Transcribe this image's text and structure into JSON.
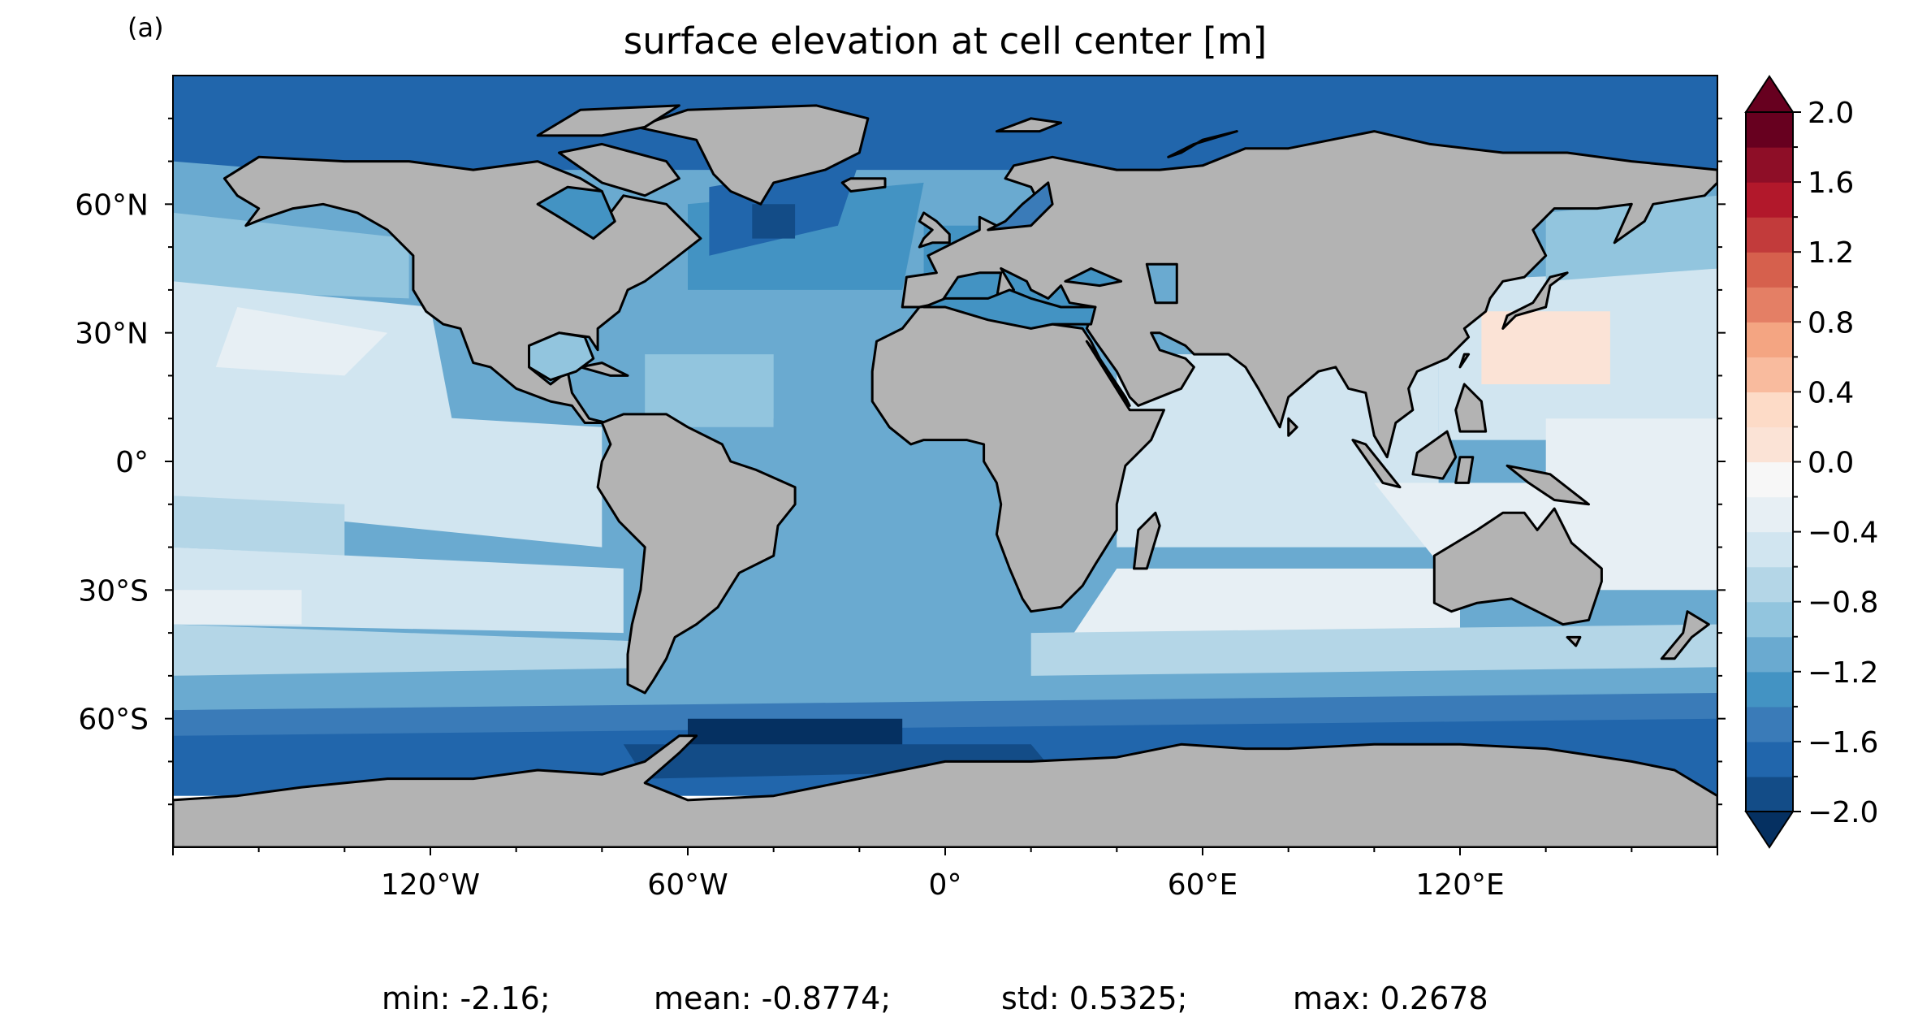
{
  "panel_label": "(a)",
  "title": "surface elevation at cell center [m]",
  "stats": {
    "min": "min: -2.16;",
    "mean": "mean: -0.8774;",
    "std": "std: 0.5325;",
    "max": "max: 0.2678"
  },
  "chart_data": {
    "type": "heatmap",
    "title": "surface elevation at cell center [m]",
    "projection": "PlateCarree",
    "lon_range": [
      -180,
      180
    ],
    "lat_range": [
      -90,
      90
    ],
    "lon_ticks": [
      {
        "value": -120,
        "label": "120°W"
      },
      {
        "value": -60,
        "label": "60°W"
      },
      {
        "value": 0,
        "label": "0°"
      },
      {
        "value": 60,
        "label": "60°E"
      },
      {
        "value": 120,
        "label": "120°E"
      }
    ],
    "lat_ticks": [
      {
        "value": 60,
        "label": "60°N"
      },
      {
        "value": 30,
        "label": "30°N"
      },
      {
        "value": 0,
        "label": "0°"
      },
      {
        "value": -30,
        "label": "30°S"
      },
      {
        "value": -60,
        "label": "60°S"
      }
    ],
    "colorbar": {
      "colormap": "RdBu_r",
      "range": [
        -2.0,
        2.0
      ],
      "extend": "both",
      "levels": [
        -2.0,
        -1.8,
        -1.6,
        -1.4,
        -1.2,
        -1.0,
        -0.8,
        -0.6,
        -0.4,
        -0.2,
        0.0,
        0.2,
        0.4,
        0.6,
        0.8,
        1.0,
        1.2,
        1.4,
        1.6,
        1.8,
        2.0
      ],
      "colors": [
        "#053061",
        "#134c87",
        "#2166ac",
        "#3a7bb8",
        "#4393c3",
        "#6aaad0",
        "#92c5de",
        "#b4d6e7",
        "#d1e5f0",
        "#e7eff4",
        "#f7f7f7",
        "#fbe3d6",
        "#fddbc7",
        "#f9bb9e",
        "#f4a582",
        "#e47f65",
        "#d6604d",
        "#c23b3b",
        "#b2182b",
        "#8e0e27",
        "#67001f"
      ],
      "ticks": [
        {
          "value": 2.0,
          "label": "2.0"
        },
        {
          "value": 1.6,
          "label": "1.6"
        },
        {
          "value": 1.2,
          "label": "1.2"
        },
        {
          "value": 0.8,
          "label": "0.8"
        },
        {
          "value": 0.4,
          "label": "0.4"
        },
        {
          "value": 0.0,
          "label": "0.0"
        },
        {
          "value": -0.4,
          "label": "−0.4"
        },
        {
          "value": -0.8,
          "label": "−0.8"
        },
        {
          "value": -1.2,
          "label": "−1.2"
        },
        {
          "value": -1.6,
          "label": "−1.6"
        },
        {
          "value": -2.0,
          "label": "−2.0"
        }
      ]
    },
    "land_color": "#b3b3b3",
    "missing_color": "#ffffff",
    "coastline_color": "#000000"
  }
}
